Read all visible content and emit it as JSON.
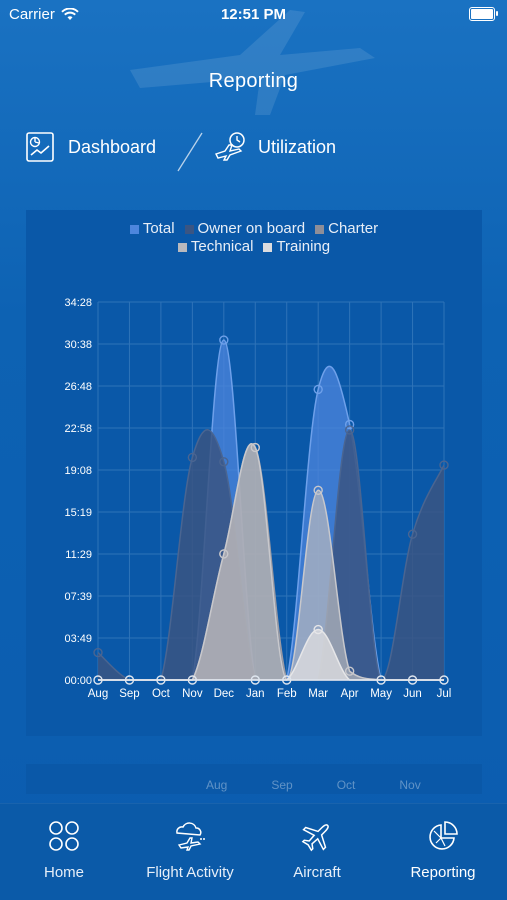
{
  "status": {
    "carrier": "Carrier",
    "time": "12:51 PM"
  },
  "title": "Reporting",
  "segments": {
    "dashboard": "Dashboard",
    "utilization": "Utilization"
  },
  "legend": [
    "Total",
    "Owner on board",
    "Charter",
    "Technical",
    "Training"
  ],
  "colors": {
    "total": "#4d86dd",
    "owner": "#3a5583",
    "charter": "#8e8e98",
    "technical": "#b9b9be",
    "training": "#dcdcdf",
    "grid": "#2f73b8"
  },
  "chart_data": {
    "type": "area",
    "categories": [
      "Aug",
      "Sep",
      "Oct",
      "Nov",
      "Dec",
      "Jan",
      "Feb",
      "Mar",
      "Apr",
      "May",
      "Jun",
      "Jul"
    ],
    "y_ticks": [
      "00:00",
      "03:49",
      "07:39",
      "11:29",
      "15:19",
      "19:08",
      "22:58",
      "26:48",
      "30:38",
      "34:28"
    ],
    "ylim": [
      0,
      34.47
    ],
    "series": [
      {
        "name": "Total",
        "values": [
          0,
          0,
          0,
          0,
          31.0,
          0,
          0,
          26.5,
          23.3,
          0,
          0,
          0
        ]
      },
      {
        "name": "Owner on board",
        "values": [
          2.5,
          0,
          0,
          20.3,
          19.9,
          0,
          0,
          0,
          22.8,
          0,
          13.3,
          19.6
        ]
      },
      {
        "name": "Charter",
        "values": [
          0,
          0,
          0,
          0,
          11.5,
          21.2,
          0,
          0,
          0,
          0,
          0,
          0
        ]
      },
      {
        "name": "Technical",
        "values": [
          0,
          0,
          0,
          0,
          11.5,
          21.2,
          0,
          17.3,
          0.8,
          0,
          0,
          0
        ]
      },
      {
        "name": "Training",
        "values": [
          0,
          0,
          0,
          0,
          0,
          0,
          0,
          4.6,
          0,
          0,
          0,
          0
        ]
      }
    ]
  },
  "next_card_months": [
    "Aug",
    "Sep",
    "Oct",
    "Nov"
  ],
  "tabs": [
    {
      "label": "Home"
    },
    {
      "label": "Flight Activity"
    },
    {
      "label": "Aircraft"
    },
    {
      "label": "Reporting"
    }
  ]
}
